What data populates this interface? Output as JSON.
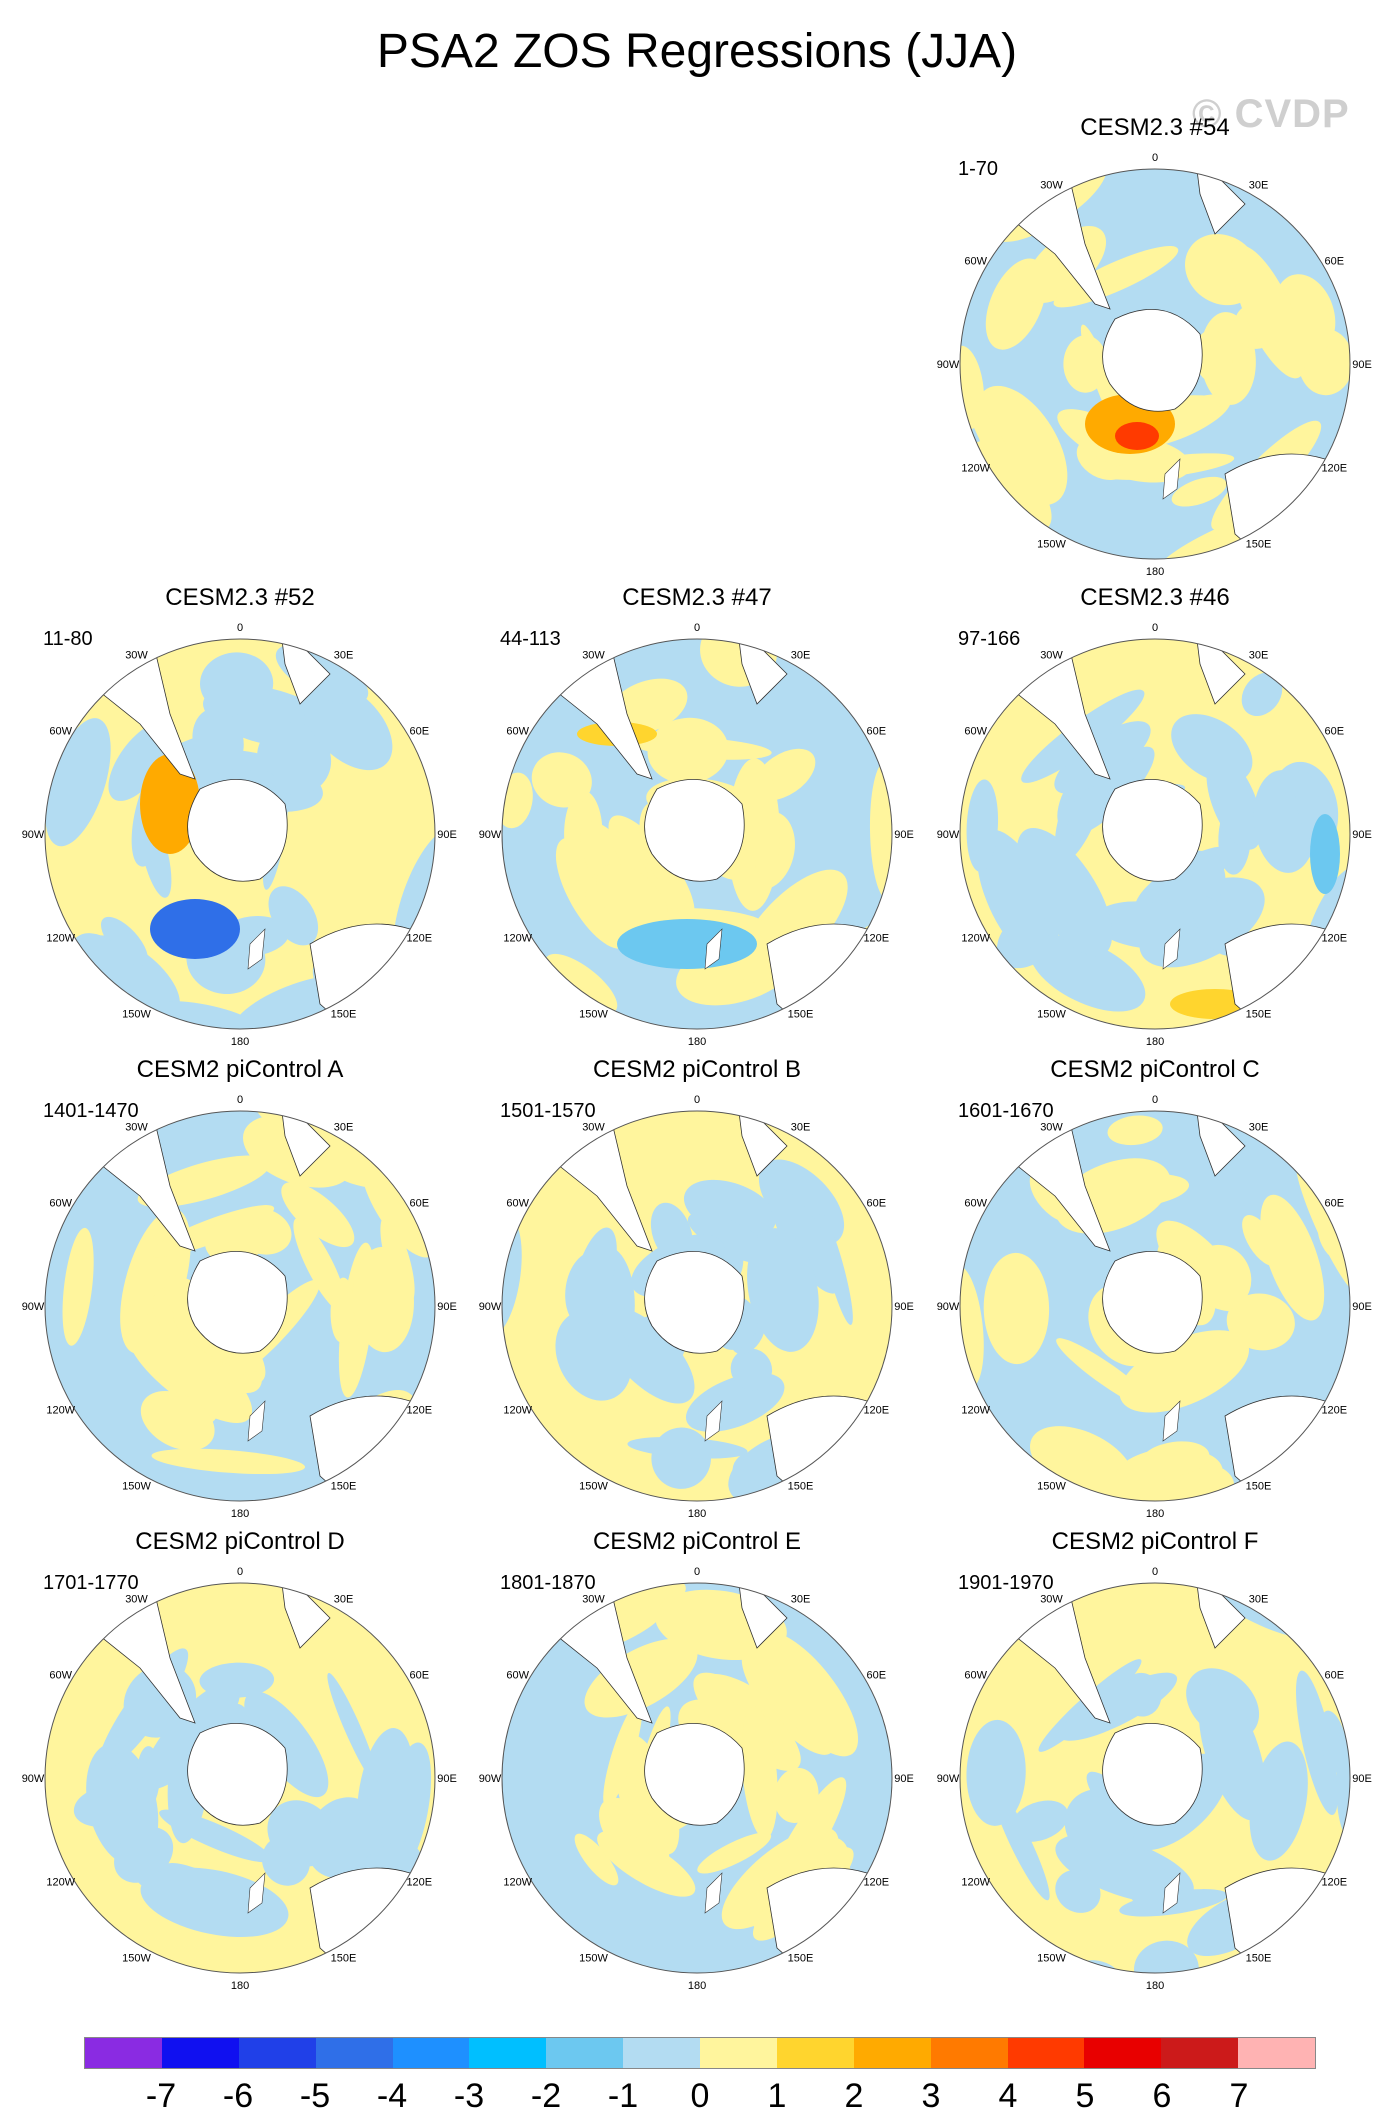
{
  "title": "PSA2 ZOS Regressions (JJA)",
  "watermark": "© CVDP",
  "longitude_labels": [
    "0",
    "30E",
    "60E",
    "90E",
    "120E",
    "150E",
    "180",
    "150W",
    "120W",
    "90W",
    "60W",
    "30W"
  ],
  "panels": [
    {
      "title": "CESM2.3 #54",
      "period": "1-70",
      "color_seed": 54
    },
    {
      "title": "CESM2.3 #52",
      "period": "11-80",
      "color_seed": 52
    },
    {
      "title": "CESM2.3 #47",
      "period": "44-113",
      "color_seed": 47
    },
    {
      "title": "CESM2.3 #46",
      "period": "97-166",
      "color_seed": 46
    },
    {
      "title": "CESM2 piControl A",
      "period": "1401-1470",
      "color_seed": 1
    },
    {
      "title": "CESM2 piControl B",
      "period": "1501-1570",
      "color_seed": 2
    },
    {
      "title": "CESM2 piControl C",
      "period": "1601-1670",
      "color_seed": 3
    },
    {
      "title": "CESM2 piControl D",
      "period": "1701-1770",
      "color_seed": 4
    },
    {
      "title": "CESM2 piControl E",
      "period": "1801-1870",
      "color_seed": 5
    },
    {
      "title": "CESM2 piControl F",
      "period": "1901-1970",
      "color_seed": 6
    }
  ],
  "colorbar": {
    "colors": [
      "#8a2be2",
      "#1010f0",
      "#2040e8",
      "#2f6fe8",
      "#1e90ff",
      "#00bfff",
      "#6cc8f0",
      "#b3dcf2",
      "#fff59d",
      "#ffd52e",
      "#ffaa00",
      "#ff7a00",
      "#ff3a00",
      "#e80000",
      "#cc1a1a",
      "#ffb3b3"
    ],
    "labels": [
      "-7",
      "-6",
      "-5",
      "-4",
      "-3",
      "-2",
      "-1",
      "0",
      "1",
      "2",
      "3",
      "4",
      "5",
      "6",
      "7"
    ]
  }
}
